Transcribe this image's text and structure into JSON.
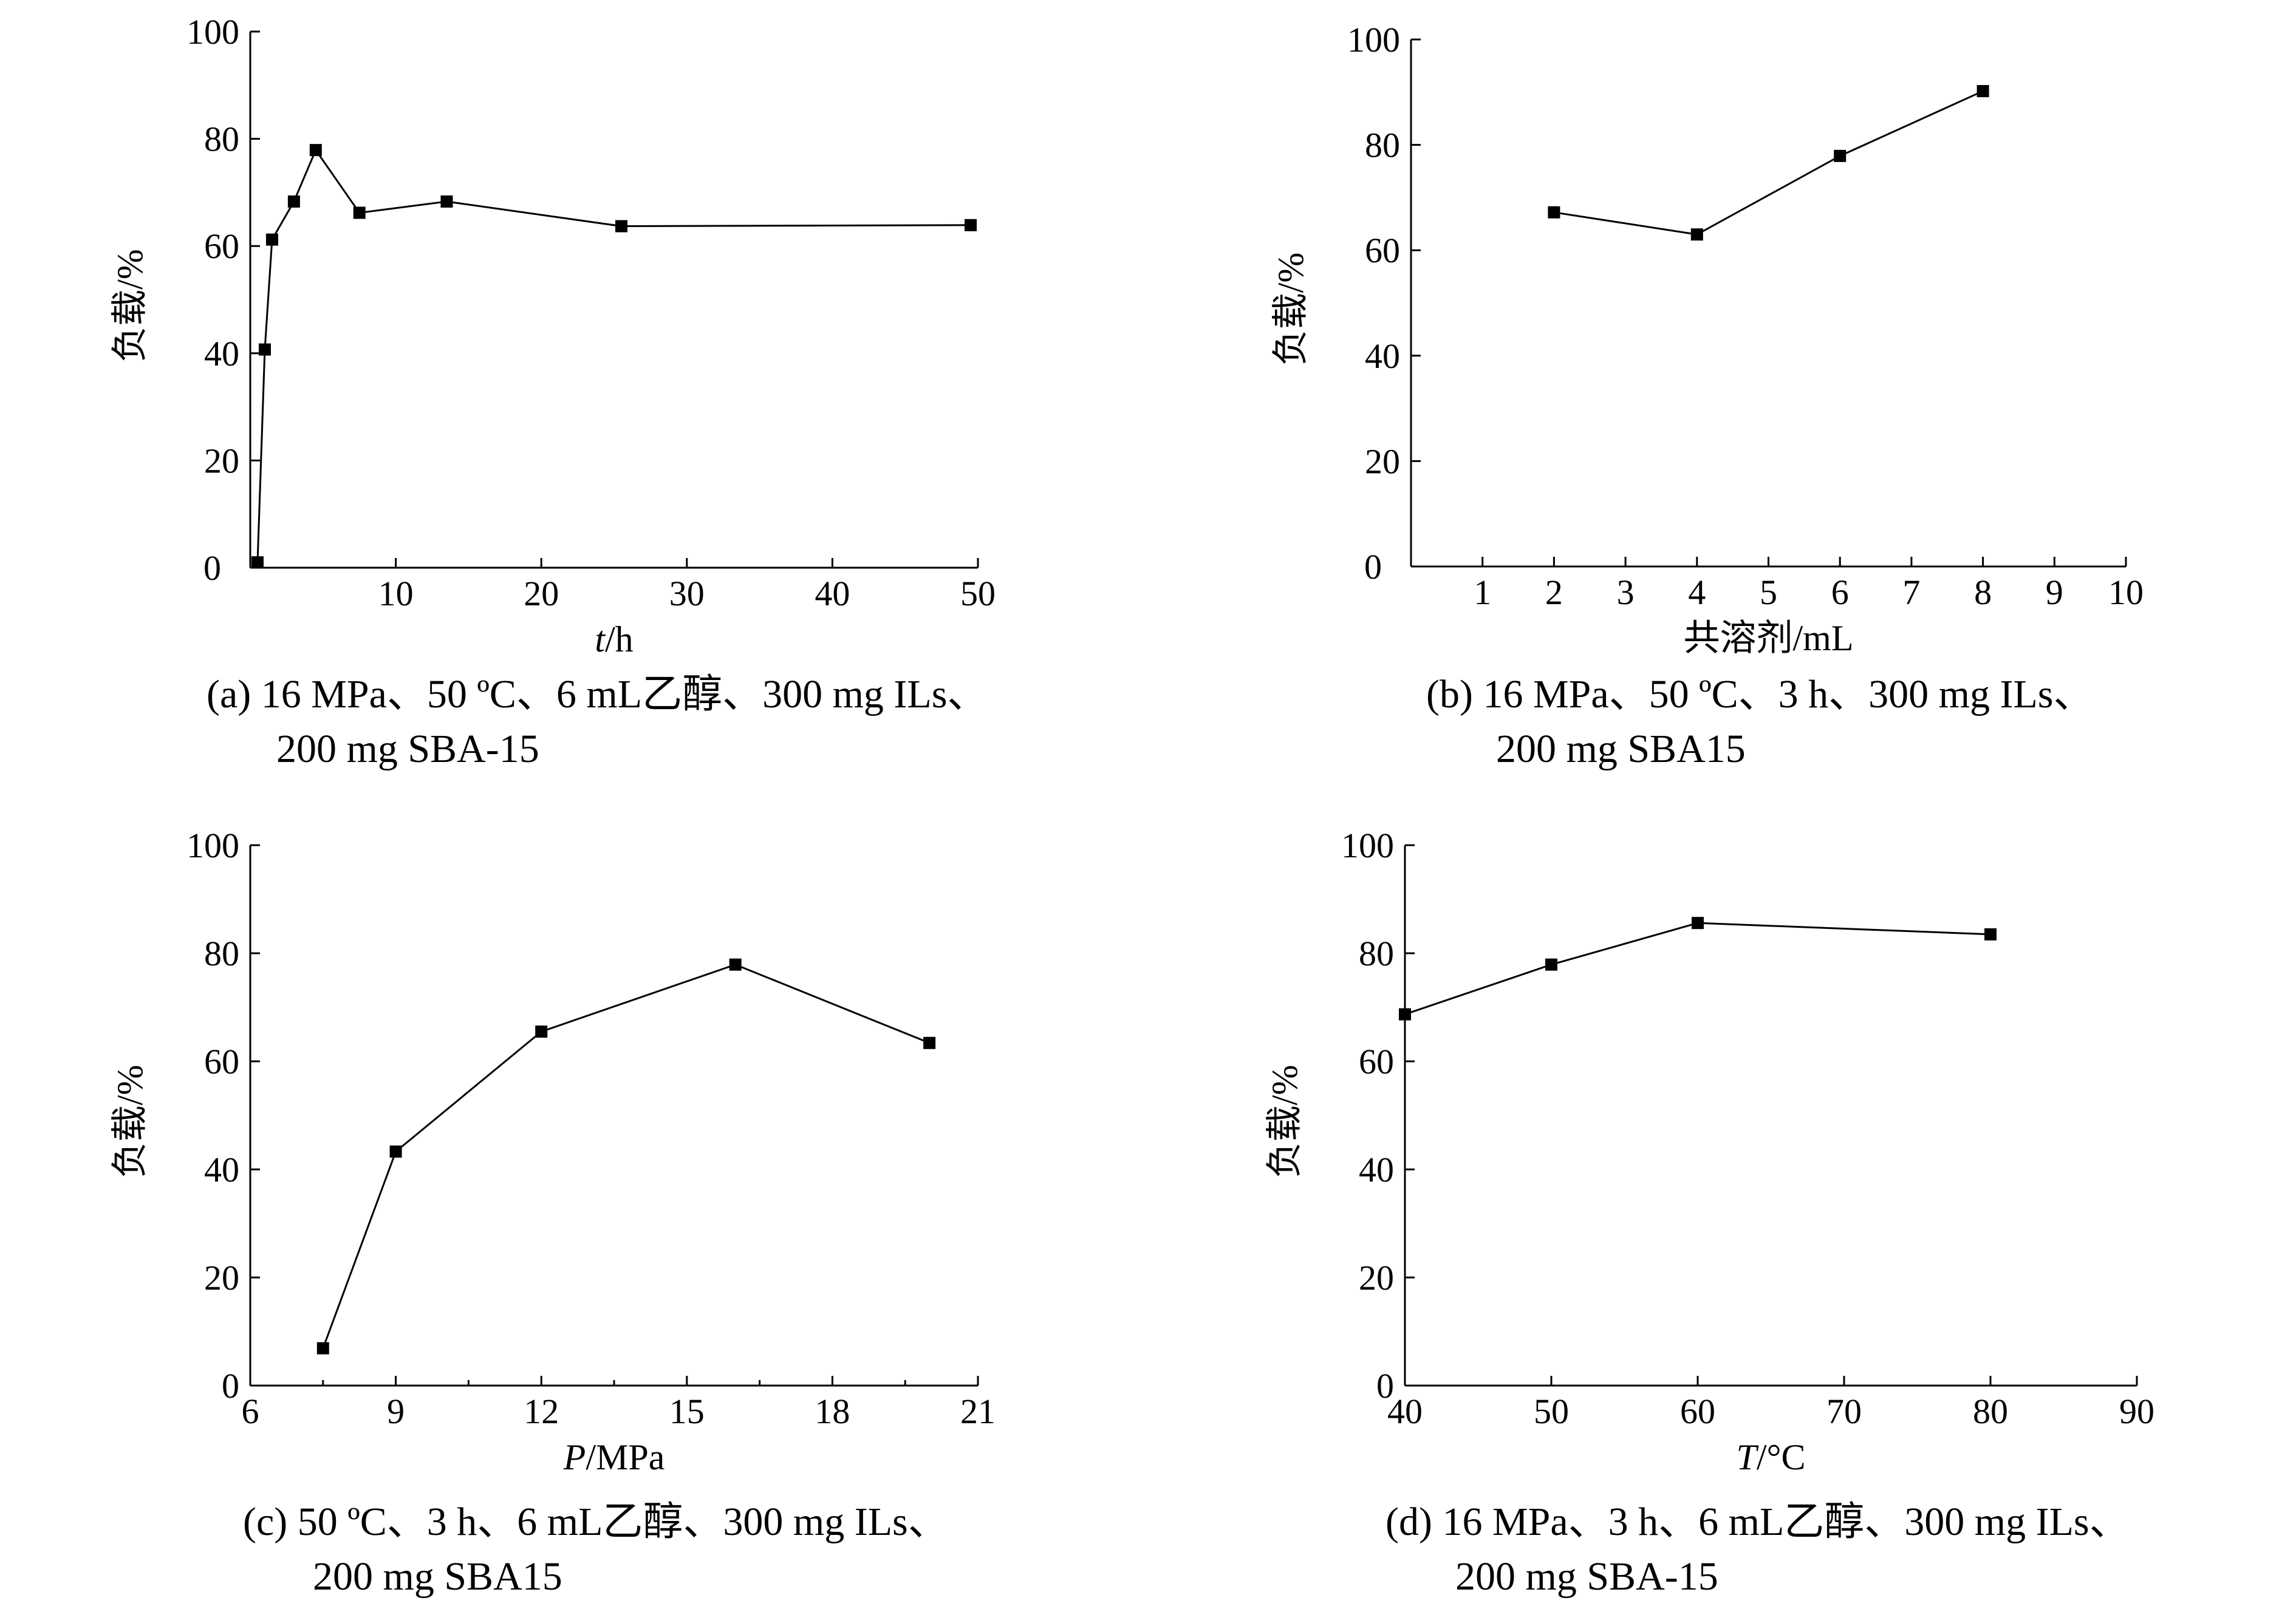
{
  "chart_data": [
    {
      "id": "a",
      "type": "line",
      "ylabel": "负载/%",
      "xlabel_italic": "t",
      "xlabel_rest": "/h",
      "xlim": [
        0,
        50
      ],
      "ylim": [
        0,
        100
      ],
      "xticks": [
        10,
        20,
        30,
        40,
        50
      ],
      "xtick_labels": [
        "10",
        "20",
        "30",
        "40",
        "50"
      ],
      "origin_label": "0",
      "yticks": [
        20,
        40,
        60,
        80,
        100
      ],
      "ytick_labels": [
        "20",
        "40",
        "60",
        "80",
        "100"
      ],
      "minor_xticks": [],
      "x": [
        0.5,
        1,
        1.5,
        3,
        4.5,
        7.5,
        13.5,
        25.5,
        49.5
      ],
      "y": [
        1,
        40.7,
        61.2,
        68.3,
        77.9,
        66.2,
        68.3,
        63.7,
        63.9
      ],
      "caption_line1": "(a) 16 MPa、50 ºC、6 mL乙醇、300 mg ILs、",
      "caption_line2": "200 mg SBA-15"
    },
    {
      "id": "b",
      "type": "line",
      "ylabel": "负载/%",
      "xlabel_italic": "",
      "xlabel_rest": "共溶剂/mL",
      "xlim": [
        0,
        10
      ],
      "ylim": [
        0,
        100
      ],
      "xticks": [
        1,
        2,
        3,
        4,
        5,
        6,
        7,
        8,
        9,
        10
      ],
      "xtick_labels": [
        "1",
        "2",
        "3",
        "4",
        "5",
        "6",
        "7",
        "8",
        "9",
        "10"
      ],
      "origin_label": "0",
      "yticks": [
        20,
        40,
        60,
        80,
        100
      ],
      "ytick_labels": [
        "20",
        "40",
        "60",
        "80",
        "100"
      ],
      "minor_xticks": [],
      "x": [
        2,
        4,
        6,
        8
      ],
      "y": [
        67.2,
        63.0,
        77.9,
        90.2
      ],
      "caption_line1": "(b) 16 MPa、50 ºC、3 h、300 mg ILs、",
      "caption_line2": "200 mg SBA15"
    },
    {
      "id": "c",
      "type": "line",
      "ylabel": "负载/%",
      "xlabel_italic": "P",
      "xlabel_rest": "/MPa",
      "xlim": [
        6,
        21
      ],
      "ylim": [
        0,
        100
      ],
      "xticks": [
        6,
        9,
        12,
        15,
        18,
        21
      ],
      "xtick_labels": [
        "6",
        "9",
        "12",
        "15",
        "18",
        "21"
      ],
      "origin_label": "",
      "yticks": [
        0,
        20,
        40,
        60,
        80,
        100
      ],
      "ytick_labels": [
        "0",
        "20",
        "40",
        "60",
        "80",
        "100"
      ],
      "minor_xticks": [
        7.5,
        10.5,
        13.5,
        16.5,
        19.5
      ],
      "x": [
        7.5,
        9,
        12,
        16,
        20
      ],
      "y": [
        6.9,
        43.3,
        65.5,
        77.9,
        63.4
      ],
      "caption_line1": "(c) 50 ºC、3 h、6 mL乙醇、300 mg ILs、",
      "caption_line2": "200 mg SBA15"
    },
    {
      "id": "d",
      "type": "line",
      "ylabel": "负载/%",
      "xlabel_italic": "T",
      "xlabel_rest": "/°C",
      "xlim": [
        40,
        90
      ],
      "ylim": [
        0,
        100
      ],
      "xticks": [
        40,
        50,
        60,
        70,
        80,
        90
      ],
      "xtick_labels": [
        "40",
        "50",
        "60",
        "70",
        "80",
        "90"
      ],
      "origin_label": "",
      "yticks": [
        0,
        20,
        40,
        60,
        80,
        100
      ],
      "ytick_labels": [
        "0",
        "20",
        "40",
        "60",
        "80",
        "100"
      ],
      "minor_xticks": [],
      "x": [
        40,
        50,
        60,
        80
      ],
      "y": [
        68.7,
        77.9,
        85.6,
        83.5
      ],
      "caption_line1": "(d) 16 MPa、3 h、6 mL乙醇、300 mg ILs、",
      "caption_line2": "200 mg SBA-15"
    }
  ]
}
